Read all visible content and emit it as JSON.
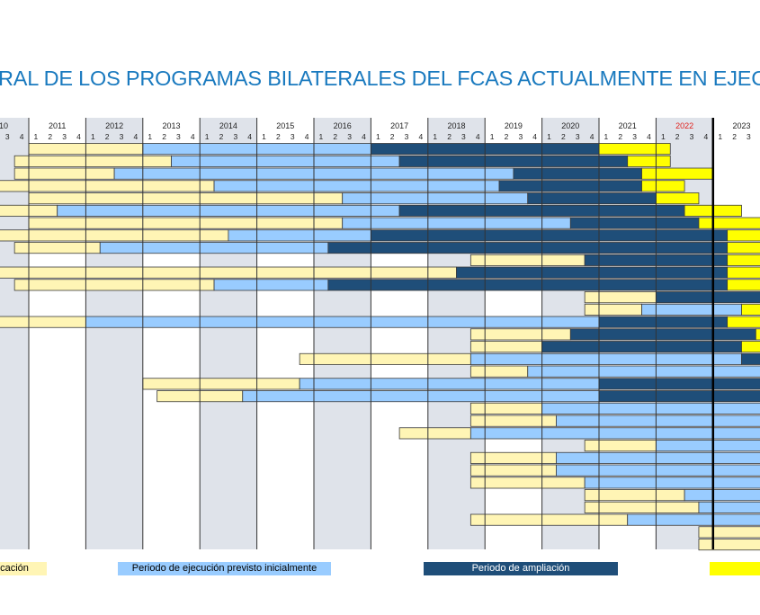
{
  "title": "RAL DE LOS PROGRAMAS BILATERALES DEL FCAS ACTUALMENTE EN EJECUCIÓN",
  "chart_data": {
    "type": "gantt",
    "title": "RAL DE LOS PROGRAMAS BILATERALES DEL FCAS ACTUALMENTE EN EJECUCIÓN",
    "x_range": [
      2010.5,
      2023.83
    ],
    "years": [
      {
        "label": "10",
        "year": 2010,
        "highlight": false
      },
      {
        "label": "2011",
        "year": 2011,
        "highlight": false
      },
      {
        "label": "2012",
        "year": 2012,
        "highlight": false
      },
      {
        "label": "2013",
        "year": 2013,
        "highlight": false
      },
      {
        "label": "2014",
        "year": 2014,
        "highlight": false
      },
      {
        "label": "2015",
        "year": 2015,
        "highlight": false
      },
      {
        "label": "2016",
        "year": 2016,
        "highlight": false
      },
      {
        "label": "2017",
        "year": 2017,
        "highlight": false
      },
      {
        "label": "2018",
        "year": 2018,
        "highlight": false
      },
      {
        "label": "2019",
        "year": 2019,
        "highlight": false
      },
      {
        "label": "2020",
        "year": 2020,
        "highlight": false
      },
      {
        "label": "2021",
        "year": 2021,
        "highlight": false
      },
      {
        "label": "2022",
        "year": 2022,
        "highlight": true
      },
      {
        "label": "2023",
        "year": 2023,
        "highlight": false
      }
    ],
    "quarter_labels": [
      "1",
      "2",
      "3",
      "4"
    ],
    "current_marker": 2023.0,
    "colors": {
      "formulacion": "#fff5b5",
      "previsto": "#99ccff",
      "ampliacion": "#1f4e79",
      "nueva": "#ffff00",
      "year_shade": "#dfe3ea",
      "highlight_year": "#e0201c",
      "title": "#1a7abf"
    },
    "legend": [
      {
        "key": "formulacion",
        "label": "cación"
      },
      {
        "key": "previsto",
        "label": "Periodo de ejecución previsto inicialmente"
      },
      {
        "key": "ampliacion",
        "label": "Periodo de ampliación"
      },
      {
        "key": "nueva",
        "label": ""
      }
    ],
    "rows": [
      [
        [
          "formulacion",
          2011.0,
          2013.0
        ],
        [
          "previsto",
          2013.0,
          2017.0
        ],
        [
          "ampliacion",
          2017.0,
          2021.0
        ],
        [
          "nueva",
          2021.0,
          2022.25
        ]
      ],
      [
        [
          "formulacion",
          2010.75,
          2013.5
        ],
        [
          "previsto",
          2013.5,
          2017.5
        ],
        [
          "ampliacion",
          2017.5,
          2021.5
        ],
        [
          "nueva",
          2021.5,
          2022.25
        ]
      ],
      [
        [
          "formulacion",
          2010.75,
          2012.5
        ],
        [
          "previsto",
          2012.5,
          2019.5
        ],
        [
          "ampliacion",
          2019.5,
          2021.75
        ],
        [
          "nueva",
          2021.75,
          2023.0
        ]
      ],
      [
        [
          "formulacion",
          2010.0,
          2014.25
        ],
        [
          "previsto",
          2014.25,
          2019.25
        ],
        [
          "ampliacion",
          2019.25,
          2021.75
        ],
        [
          "nueva",
          2021.75,
          2022.5
        ]
      ],
      [
        [
          "formulacion",
          2011.0,
          2016.5
        ],
        [
          "previsto",
          2016.5,
          2019.75
        ],
        [
          "ampliacion",
          2019.75,
          2022.0
        ],
        [
          "nueva",
          2022.0,
          2022.75
        ]
      ],
      [
        [
          "formulacion",
          2010.0,
          2011.5
        ],
        [
          "previsto",
          2011.5,
          2017.5
        ],
        [
          "ampliacion",
          2017.5,
          2022.5
        ],
        [
          "nueva",
          2022.5,
          2023.5
        ]
      ],
      [
        [
          "formulacion",
          2011.0,
          2016.5
        ],
        [
          "previsto",
          2016.5,
          2020.5
        ],
        [
          "ampliacion",
          2020.5,
          2022.75
        ],
        [
          "nueva",
          2022.75,
          2024.25
        ]
      ],
      [
        [
          "formulacion",
          2010.0,
          2014.5
        ],
        [
          "previsto",
          2014.5,
          2017.0
        ],
        [
          "ampliacion",
          2017.0,
          2023.25
        ],
        [
          "nueva",
          2023.25,
          2024.25
        ]
      ],
      [
        [
          "formulacion",
          2010.75,
          2012.25
        ],
        [
          "previsto",
          2012.25,
          2016.25
        ],
        [
          "ampliacion",
          2016.25,
          2023.25
        ],
        [
          "nueva",
          2023.25,
          2024.25
        ]
      ],
      [
        [
          "formulacion",
          2018.75,
          2020.75
        ],
        [
          "ampliacion",
          2020.75,
          2023.25
        ],
        [
          "nueva",
          2023.25,
          2024.25
        ]
      ],
      [
        [
          "formulacion",
          2010.0,
          2018.5
        ],
        [
          "ampliacion",
          2018.5,
          2023.25
        ],
        [
          "nueva",
          2023.25,
          2024.25
        ]
      ],
      [
        [
          "formulacion",
          2010.75,
          2014.25
        ],
        [
          "previsto",
          2014.25,
          2016.25
        ],
        [
          "ampliacion",
          2016.25,
          2023.25
        ],
        [
          "nueva",
          2023.25,
          2024.25
        ]
      ],
      [
        [
          "formulacion",
          2020.75,
          2022.0
        ],
        [
          "ampliacion",
          2022.0,
          2024.25
        ]
      ],
      [
        [
          "formulacion",
          2020.75,
          2021.75
        ],
        [
          "previsto",
          2021.75,
          2023.5
        ],
        [
          "nueva",
          2023.5,
          2024.25
        ]
      ],
      [
        [
          "formulacion",
          2010.0,
          2012.0
        ],
        [
          "previsto",
          2012.0,
          2021.0
        ],
        [
          "ampliacion",
          2021.0,
          2023.25
        ],
        [
          "nueva",
          2023.25,
          2024.25
        ]
      ],
      [
        [
          "formulacion",
          2018.75,
          2020.5
        ],
        [
          "ampliacion",
          2020.5,
          2023.75
        ],
        [
          "nueva",
          2023.75,
          2024.25
        ]
      ],
      [
        [
          "formulacion",
          2018.75,
          2020.0
        ],
        [
          "ampliacion",
          2020.0,
          2023.5
        ],
        [
          "nueva",
          2023.5,
          2024.25
        ]
      ],
      [
        [
          "formulacion",
          2015.75,
          2018.75
        ],
        [
          "previsto",
          2018.75,
          2023.5
        ],
        [
          "ampliacion",
          2023.5,
          2024.25
        ]
      ],
      [
        [
          "formulacion",
          2018.75,
          2019.75
        ],
        [
          "previsto",
          2019.75,
          2024.25
        ]
      ],
      [
        [
          "formulacion",
          2013.0,
          2015.75
        ],
        [
          "previsto",
          2015.75,
          2021.0
        ],
        [
          "ampliacion",
          2021.0,
          2024.25
        ]
      ],
      [
        [
          "formulacion",
          2013.25,
          2014.75
        ],
        [
          "previsto",
          2014.75,
          2021.0
        ],
        [
          "ampliacion",
          2021.0,
          2024.25
        ]
      ],
      [
        [
          "formulacion",
          2018.75,
          2020.0
        ],
        [
          "previsto",
          2020.0,
          2024.25
        ]
      ],
      [
        [
          "formulacion",
          2018.75,
          2020.25
        ],
        [
          "previsto",
          2020.25,
          2024.25
        ]
      ],
      [
        [
          "formulacion",
          2017.5,
          2018.75
        ],
        [
          "previsto",
          2018.75,
          2024.25
        ]
      ],
      [
        [
          "formulacion",
          2020.75,
          2022.0
        ],
        [
          "previsto",
          2022.0,
          2024.25
        ]
      ],
      [
        [
          "formulacion",
          2018.75,
          2020.25
        ],
        [
          "previsto",
          2020.25,
          2024.25
        ]
      ],
      [
        [
          "formulacion",
          2018.75,
          2020.25
        ],
        [
          "previsto",
          2020.25,
          2024.25
        ]
      ],
      [
        [
          "formulacion",
          2018.75,
          2020.75
        ],
        [
          "previsto",
          2020.75,
          2024.25
        ]
      ],
      [
        [
          "formulacion",
          2020.75,
          2022.5
        ],
        [
          "previsto",
          2022.5,
          2024.25
        ]
      ],
      [
        [
          "formulacion",
          2020.75,
          2022.75
        ],
        [
          "previsto",
          2022.75,
          2024.25
        ]
      ],
      [
        [
          "formulacion",
          2018.75,
          2021.5
        ],
        [
          "previsto",
          2021.5,
          2024.25
        ]
      ],
      [
        [
          "formulacion",
          2022.75,
          2024.25
        ]
      ],
      [
        [
          "formulacion",
          2022.75,
          2024.25
        ]
      ]
    ]
  }
}
